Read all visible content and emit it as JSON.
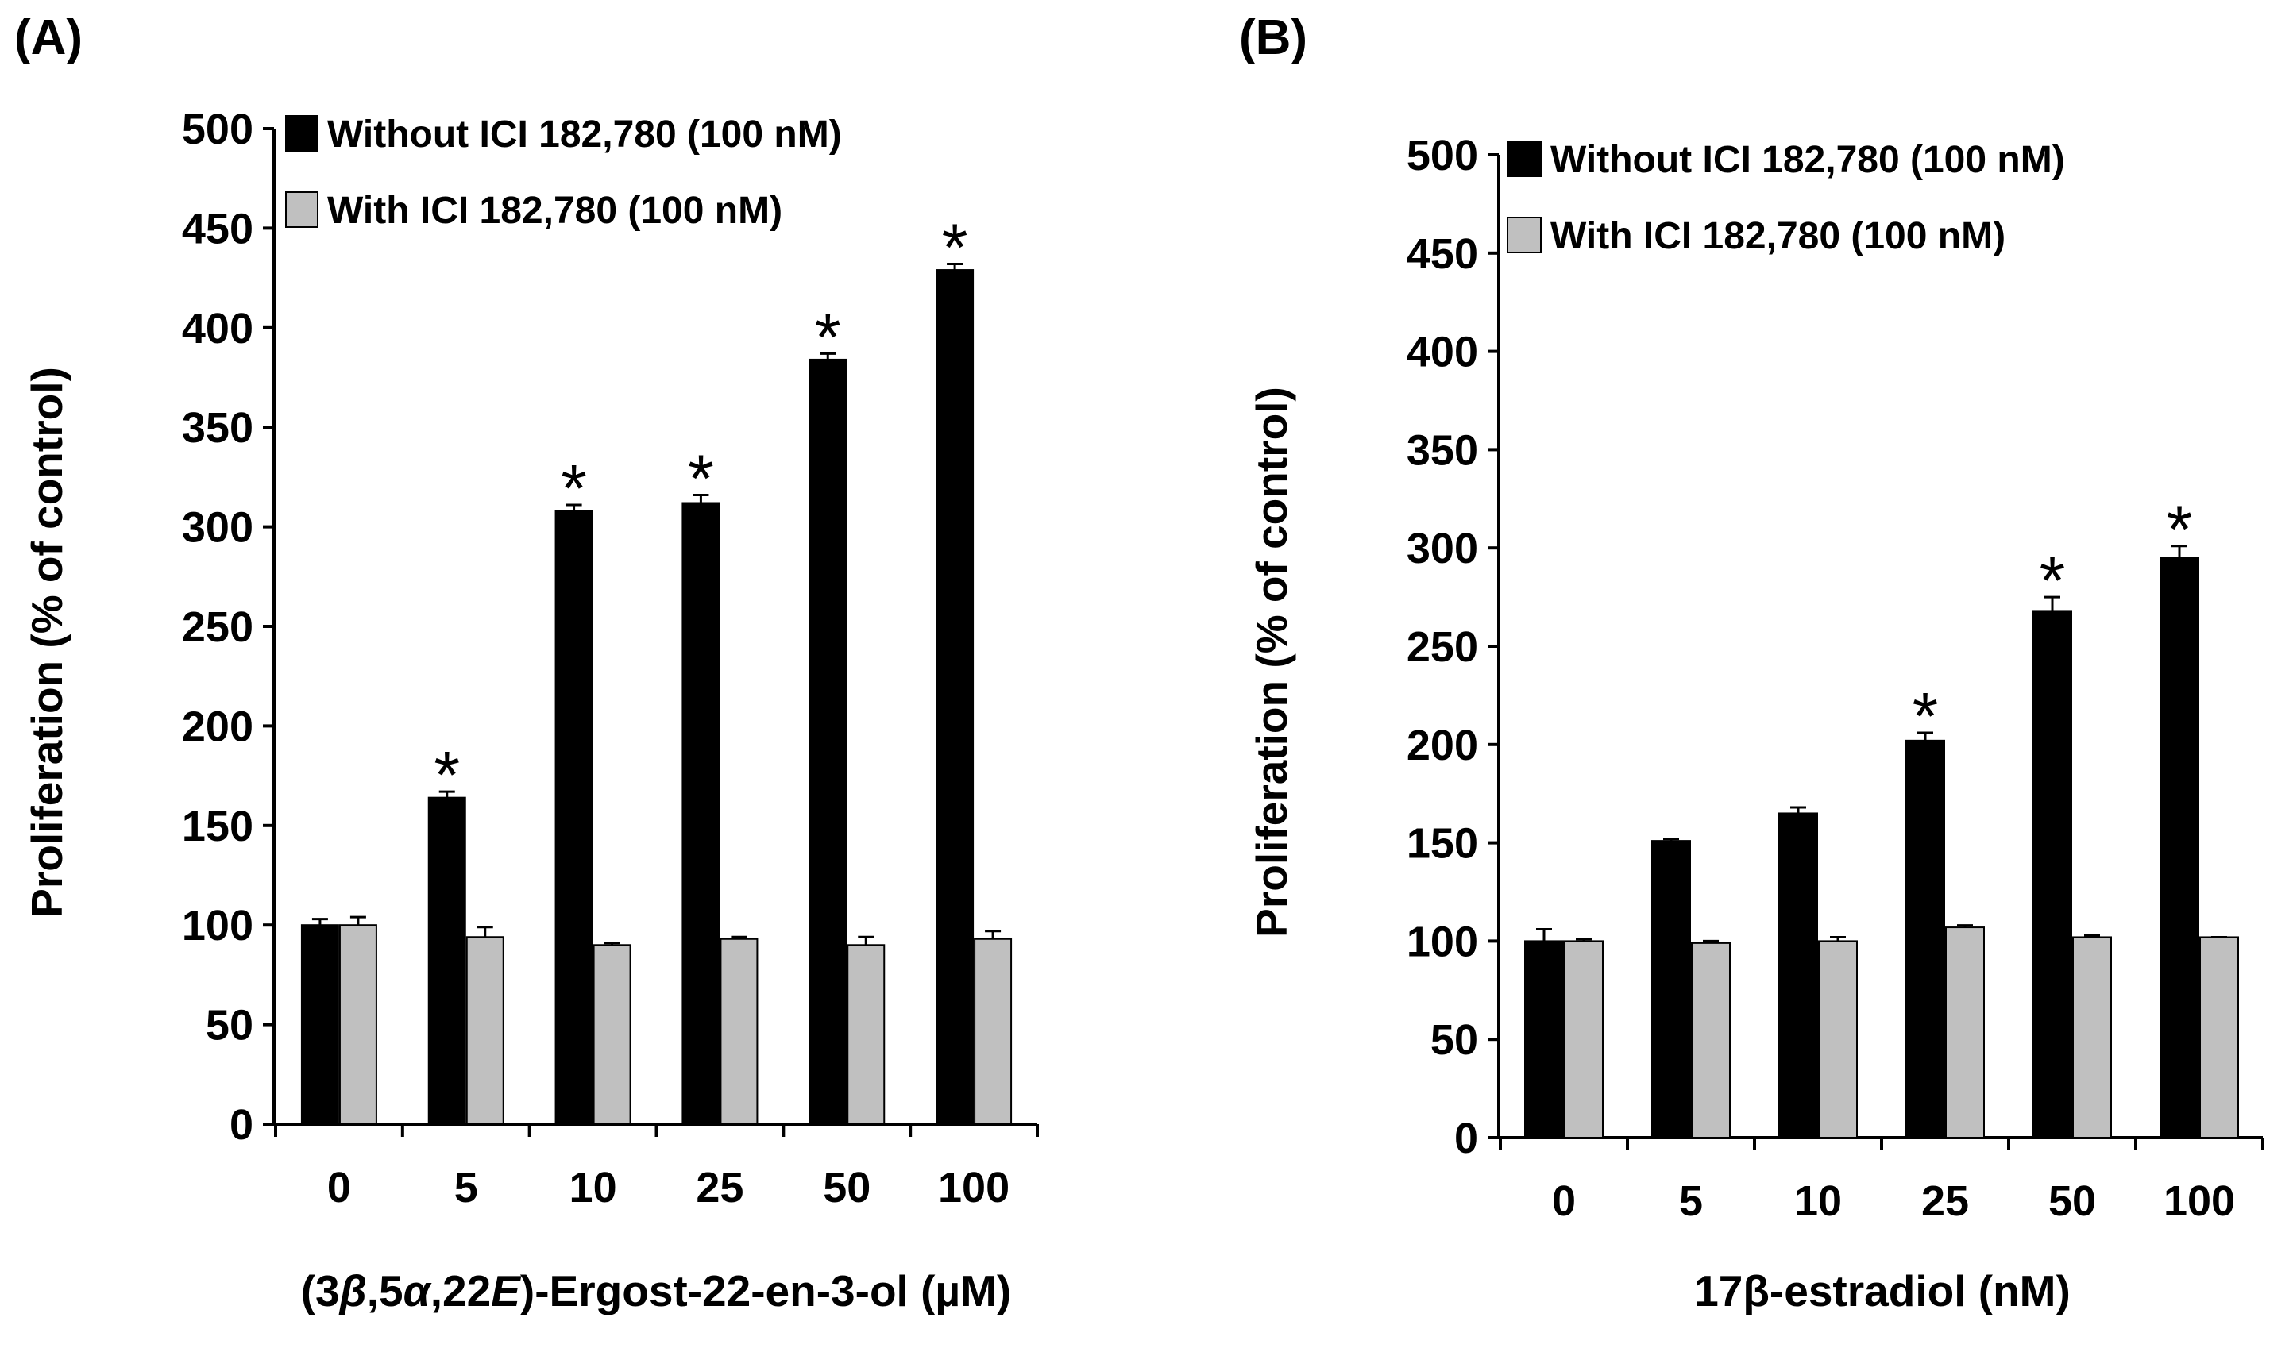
{
  "chart_data": [
    {
      "type": "bar",
      "panel_label": "(A)",
      "title": "",
      "categories": [
        "0",
        "5",
        "10",
        "25",
        "50",
        "100"
      ],
      "series": [
        {
          "name": "Without ICI 182,780 (100 nM)",
          "color": "#000000",
          "values": [
            100,
            164,
            308,
            312,
            384,
            429
          ],
          "errors": [
            3,
            3,
            3,
            4,
            3,
            3
          ]
        },
        {
          "name": "With ICI 182,780 (100 nM)",
          "color": "#c0c0c0",
          "values": [
            100,
            94,
            90,
            93,
            90,
            93
          ],
          "errors": [
            4,
            5,
            1,
            1,
            4,
            4
          ]
        }
      ],
      "significant": [
        false,
        true,
        true,
        true,
        true,
        true
      ],
      "significance_marker": "*",
      "ylabel": "Proliferation (% of control)",
      "xlabel_parts": [
        {
          "text": "(3",
          "italic": false
        },
        {
          "text": "β",
          "italic": true
        },
        {
          "text": ",5",
          "italic": false
        },
        {
          "text": "α",
          "italic": true
        },
        {
          "text": ",22",
          "italic": false
        },
        {
          "text": "E",
          "italic": true
        },
        {
          "text": ")-Ergost-22-en-3-ol (µM)",
          "italic": false
        }
      ],
      "ylim": [
        0,
        500
      ],
      "yticks": [
        "0",
        "50",
        "100",
        "150",
        "200",
        "250",
        "300",
        "350",
        "400",
        "450",
        "500"
      ],
      "legend_position": "top-left",
      "grid": false
    },
    {
      "type": "bar",
      "panel_label": "(B)",
      "title": "",
      "categories": [
        "0",
        "5",
        "10",
        "25",
        "50",
        "100"
      ],
      "series": [
        {
          "name": "Without ICI 182,780 (100 nM)",
          "color": "#000000",
          "values": [
            100,
            151,
            165,
            202,
            268,
            295
          ],
          "errors": [
            6,
            1,
            3,
            4,
            7,
            6
          ]
        },
        {
          "name": "With ICI 182,780 (100 nM)",
          "color": "#c0c0c0",
          "values": [
            100,
            99,
            100,
            107,
            102,
            102
          ],
          "errors": [
            1,
            1,
            2,
            1,
            1,
            0
          ]
        }
      ],
      "significant": [
        false,
        false,
        false,
        true,
        true,
        true
      ],
      "significance_marker": "*",
      "ylabel": "Proliferation  (% of control)",
      "xlabel_parts": [
        {
          "text": "17β-estradiol (nM)",
          "italic": false
        }
      ],
      "ylim": [
        0,
        500
      ],
      "yticks": [
        "0",
        "50",
        "100",
        "150",
        "200",
        "250",
        "300",
        "350",
        "400",
        "450",
        "500"
      ],
      "legend_position": "top-left",
      "grid": false
    }
  ]
}
